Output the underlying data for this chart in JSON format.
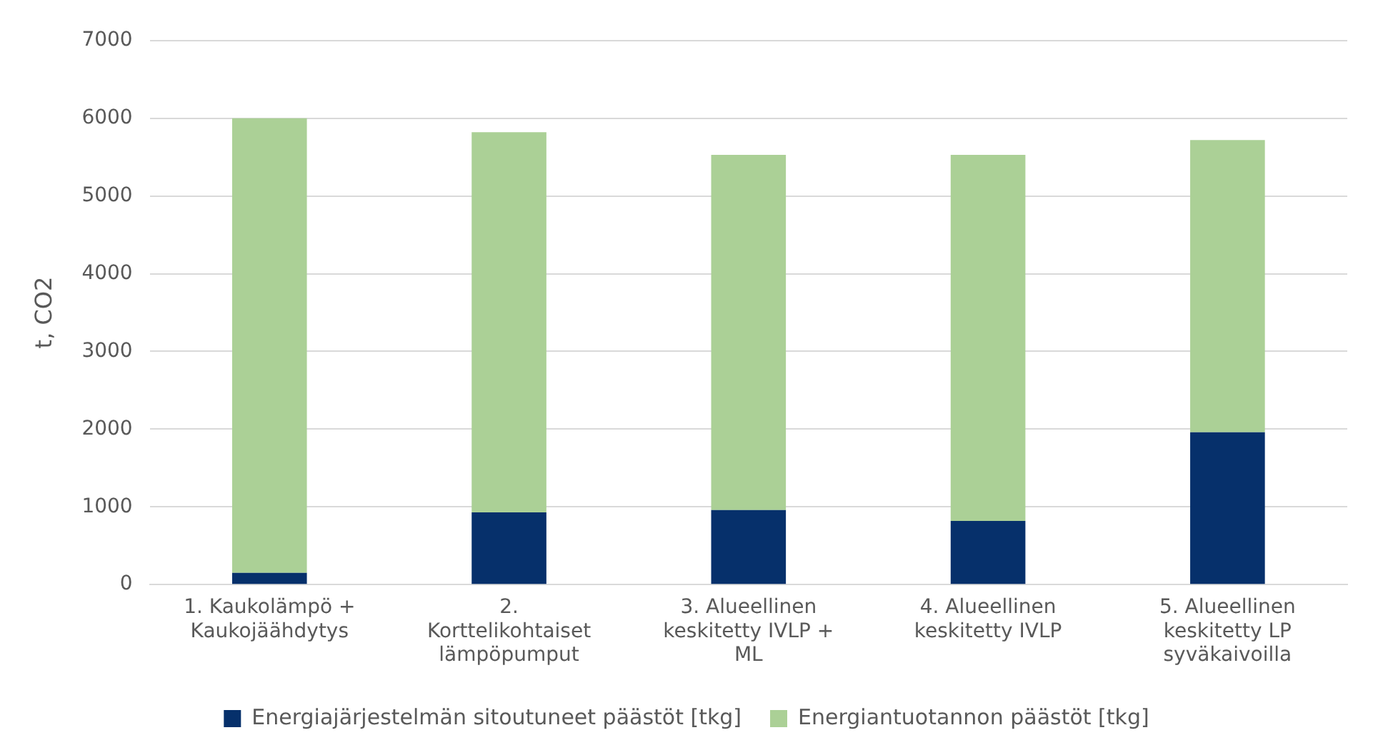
{
  "chart_data": {
    "type": "bar",
    "stacked": true,
    "ylabel": "t, CO2",
    "categories": [
      "1. Kaukolämpö + Kaukojäähdytys",
      "2. Korttelikohtaiset lämpöpumput",
      "3. Alueellinen keskitetty IVLP + ML",
      "4. Alueellinen keskitetty IVLP",
      "5. Alueellinen keskitetty LP syväkaivoilla"
    ],
    "series": [
      {
        "name": "Energiajärjestelmän sitoutuneet päästöt [tkg]",
        "color": "#06306b",
        "values": [
          150,
          930,
          960,
          820,
          1960
        ]
      },
      {
        "name": "Energiantuotannon päästöt [tkg]",
        "color": "#abd096",
        "values": [
          5850,
          4890,
          4570,
          4710,
          3760
        ]
      }
    ],
    "ylim": [
      0,
      7000
    ],
    "yticks": [
      0,
      1000,
      2000,
      3000,
      4000,
      5000,
      6000,
      7000
    ],
    "grid": "y",
    "legend": "bottom"
  }
}
